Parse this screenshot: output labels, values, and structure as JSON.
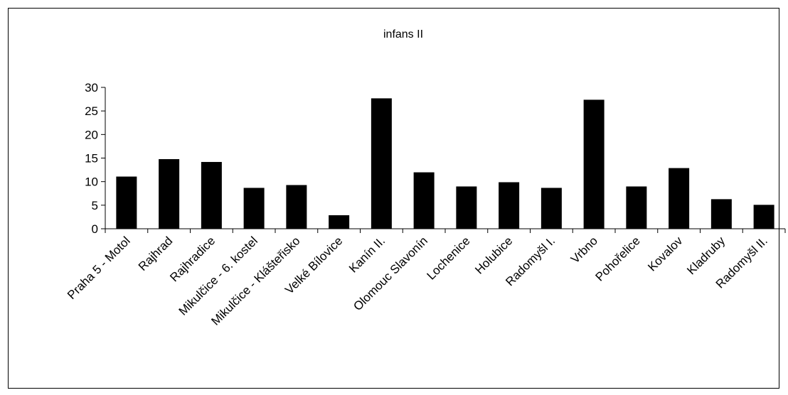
{
  "chart_data": {
    "type": "bar",
    "title": "infans II",
    "xlabel": "",
    "ylabel": "",
    "categories": [
      "Praha 5 - Motol",
      "Rajhrad",
      "Rajhradice",
      "Mikulčice - 6. kostel",
      "Mikulčice - Klášteřisko",
      "Velké Bílovice",
      "Kanín II.",
      "Olomouc Slavonín",
      "Lochenice",
      "Holubice",
      "Radomyšl I.",
      "Vrbno",
      "Pohořelice",
      "Kovalov",
      "Kladruby",
      "Radomyšl II."
    ],
    "values": [
      11,
      14.7,
      14.1,
      8.6,
      9.2,
      2.8,
      27.6,
      11.9,
      8.9,
      9.8,
      8.6,
      27.3,
      8.9,
      12.8,
      6.2,
      5.0
    ],
    "ylim": [
      0,
      30
    ],
    "yticks": [
      0,
      5,
      10,
      15,
      20,
      25,
      30
    ],
    "grid": false,
    "legend": "none",
    "bar_color": "#000000"
  }
}
